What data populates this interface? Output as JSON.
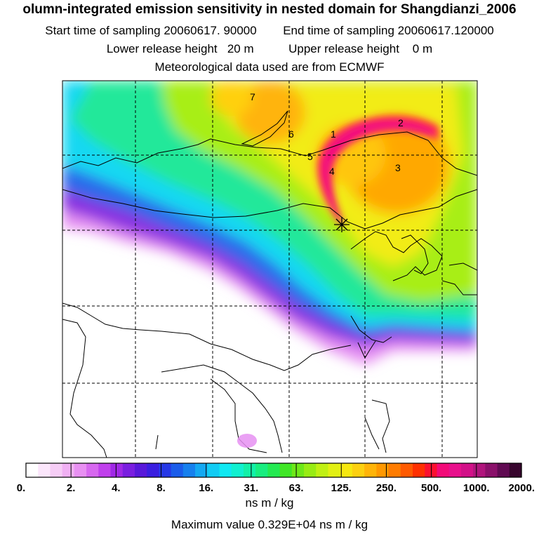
{
  "header": {
    "title": "olumn-integrated emission sensitivity in nested domain for Shangdianzi_2006",
    "start_label": "Start time of sampling 20060617. 90000",
    "end_label": "End time of sampling 20060617.120000",
    "lower_label": "Lower release height   20 m",
    "upper_label": "Upper release height    0 m",
    "met_label": "Meteorological data used are from ECMWF"
  },
  "map": {
    "trajectory_labels": [
      "1",
      "2",
      "3",
      "4",
      "5",
      "6",
      "7"
    ],
    "receptor_marker": "*"
  },
  "colorbar": {
    "tick_labels": [
      "0.",
      "2.",
      "4.",
      "8.",
      "16.",
      "31.",
      "63.",
      "125.",
      "250.",
      "500.",
      "1000.",
      "2000."
    ],
    "colors": [
      "#ffffff",
      "#fbe6fb",
      "#f6cdf6",
      "#f0b0f3",
      "#e890f2",
      "#d768ef",
      "#c040ec",
      "#a028e6",
      "#7a1ee0",
      "#5818da",
      "#3a1ee0",
      "#2638e6",
      "#1a5cea",
      "#1680ee",
      "#14a8f2",
      "#12ccf4",
      "#10e8f2",
      "#10f0d0",
      "#12f0a8",
      "#18ee80",
      "#24ea52",
      "#40e626",
      "#6ee818",
      "#98ec14",
      "#c0f014",
      "#e2f014",
      "#f6e810",
      "#fcd010",
      "#ffb408",
      "#ff9800",
      "#ff7c00",
      "#ff5a00",
      "#ff3000",
      "#fb1030",
      "#f20a78",
      "#e8108c",
      "#d21088",
      "#b0147c",
      "#8a106a",
      "#600a52",
      "#38062e"
    ],
    "units": "ns m / kg"
  },
  "max_value": "Maximum value  0.329E+04 ns m / kg",
  "chart_data": {
    "type": "heatmap",
    "title": "olumn-integrated emission sensitivity in nested domain for Shangdianzi_2006",
    "colorbar_levels": [
      0,
      2,
      4,
      8,
      16,
      31,
      63,
      125,
      250,
      500,
      1000,
      2000
    ],
    "colorbar_units": "ns m / kg",
    "maximum_value": 3290,
    "trajectory_points": [
      "1",
      "2",
      "3",
      "4",
      "5",
      "6",
      "7"
    ]
  }
}
